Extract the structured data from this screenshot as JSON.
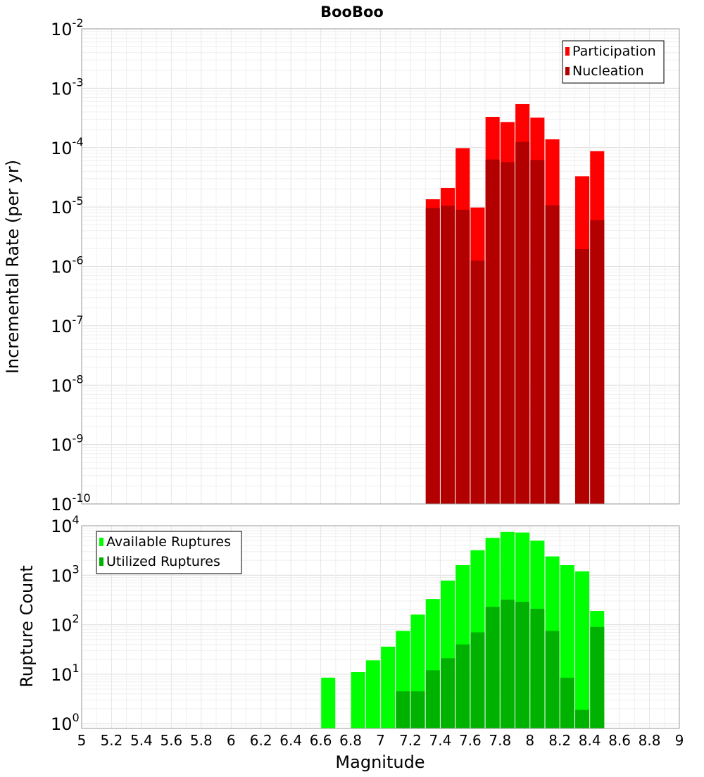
{
  "chart_data": [
    {
      "type": "bar",
      "title": "BooBoo",
      "xlabel": "",
      "ylabel": "Incremental Rate (per yr)",
      "yscale": "log",
      "ylim": [
        1e-10,
        0.01
      ],
      "xlim": [
        5,
        9
      ],
      "grid": true,
      "legend_position": "top-right",
      "y_tick_labels": [
        {
          "base": "10",
          "exp": "-10",
          "value": 1e-10
        },
        {
          "base": "10",
          "exp": "-9",
          "value": 1e-09
        },
        {
          "base": "10",
          "exp": "-8",
          "value": 1e-08
        },
        {
          "base": "10",
          "exp": "-7",
          "value": 1e-07
        },
        {
          "base": "10",
          "exp": "-6",
          "value": 1e-06
        },
        {
          "base": "10",
          "exp": "-5",
          "value": 1e-05
        },
        {
          "base": "10",
          "exp": "-4",
          "value": 0.0001
        },
        {
          "base": "10",
          "exp": "-3",
          "value": 0.001
        },
        {
          "base": "10",
          "exp": "-2",
          "value": 0.01
        }
      ],
      "x": [
        7.35,
        7.45,
        7.55,
        7.65,
        7.75,
        7.85,
        7.95,
        8.05,
        8.15,
        8.35,
        8.45
      ],
      "series": [
        {
          "name": "Participation",
          "color": "#ff0000",
          "values": [
            1.35e-05,
            2.1e-05,
            9.8e-05,
            9.8e-06,
            0.00033,
            0.00027,
            0.00054,
            0.00032,
            0.000138,
            3.3e-05,
            8.7e-05
          ]
        },
        {
          "name": "Nucleation",
          "color": "#b20000",
          "values": [
            9.6e-06,
            1.05e-05,
            9e-06,
            1.25e-06,
            6.3e-05,
            5.7e-05,
            0.000125,
            6.2e-05,
            1.07e-05,
            1.95e-06,
            6e-06
          ]
        }
      ]
    },
    {
      "type": "bar",
      "title": "",
      "xlabel": "Magnitude",
      "ylabel": "Rupture Count",
      "yscale": "log",
      "ylim": [
        0.8,
        10000
      ],
      "xlim": [
        5,
        9
      ],
      "grid": true,
      "legend_position": "top-left",
      "y_tick_labels": [
        {
          "base": "10",
          "exp": "0",
          "value": 1
        },
        {
          "base": "10",
          "exp": "1",
          "value": 10
        },
        {
          "base": "10",
          "exp": "2",
          "value": 100
        },
        {
          "base": "10",
          "exp": "3",
          "value": 1000
        },
        {
          "base": "10",
          "exp": "4",
          "value": 10000
        }
      ],
      "x_tick_labels": [
        "5",
        "5.2",
        "5.4",
        "5.6",
        "5.8",
        "6",
        "6.2",
        "6.4",
        "6.6",
        "6.8",
        "7",
        "7.2",
        "7.4",
        "7.6",
        "7.8",
        "8",
        "8.2",
        "8.4",
        "8.6",
        "8.8",
        "9"
      ],
      "series": [
        {
          "name": "Available Ruptures",
          "color": "#00ff00",
          "x": [
            6.65,
            6.85,
            6.95,
            7.05,
            7.15,
            7.25,
            7.35,
            7.45,
            7.55,
            7.65,
            7.75,
            7.85,
            7.95,
            8.05,
            8.15,
            8.25,
            8.35,
            8.45
          ],
          "values": [
            8.5,
            11,
            19,
            36,
            75,
            160,
            330,
            780,
            1600,
            3200,
            5700,
            7500,
            7300,
            5000,
            2400,
            1600,
            1200,
            190
          ]
        },
        {
          "name": "Utilized Ruptures",
          "color": "#00b200",
          "x": [
            7.15,
            7.25,
            7.35,
            7.45,
            7.55,
            7.65,
            7.75,
            7.85,
            7.95,
            8.05,
            8.15,
            8.25,
            8.35,
            8.45
          ],
          "values": [
            4.5,
            4.5,
            12,
            21,
            40,
            70,
            230,
            320,
            290,
            210,
            75,
            8.5,
            1.9,
            90
          ]
        }
      ]
    }
  ]
}
